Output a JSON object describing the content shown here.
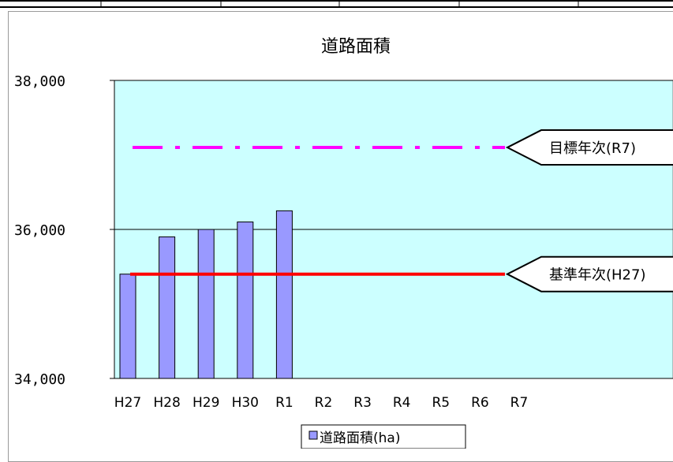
{
  "chart_data": {
    "type": "bar",
    "title": "道路面積",
    "categories": [
      "H27",
      "H28",
      "H29",
      "H30",
      "R1",
      "R2",
      "R3",
      "R4",
      "R5",
      "R6",
      "R7"
    ],
    "series": [
      {
        "name": "道路面積(ha)",
        "values": [
          35400,
          35900,
          36000,
          36100,
          36250,
          null,
          null,
          null,
          null,
          null,
          null
        ]
      }
    ],
    "ylim": [
      34000,
      38000
    ],
    "yticks": [
      "34,000",
      "36,000",
      "38,000"
    ],
    "reference_lines": [
      {
        "label": "目標年次(R7)",
        "value": 37100,
        "style": "dash-dot",
        "color": "#ff00ff"
      },
      {
        "label": "基準年次(H27)",
        "value": 35400,
        "style": "solid",
        "color": "#ff0000"
      }
    ],
    "grid": true,
    "legend_position": "bottom",
    "colors": {
      "bar_fill": "#9999ff",
      "plot_background": "#ccffff"
    }
  }
}
